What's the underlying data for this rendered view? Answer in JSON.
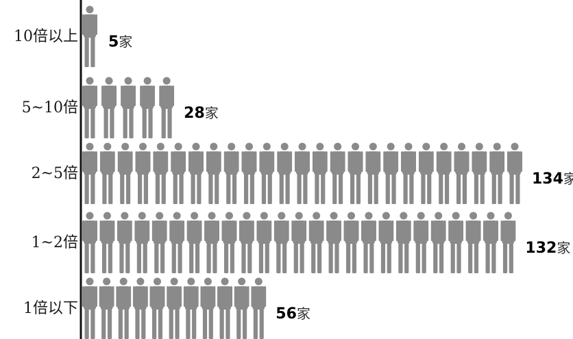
{
  "chart_data": {
    "type": "bar",
    "categories": [
      "10倍以上",
      "5~10倍",
      "2~5倍",
      "1~2倍",
      "1倍以下"
    ],
    "values": [
      5,
      28,
      134,
      132,
      56
    ],
    "value_labels": [
      {
        "number": "5",
        "unit": "家"
      },
      {
        "number": "28",
        "unit": "家"
      },
      {
        "number": "134",
        "unit": "家"
      },
      {
        "number": "132",
        "unit": "家"
      },
      {
        "number": "56",
        "unit": "家"
      }
    ],
    "orientation": "horizontal",
    "xlim": [
      0,
      134
    ],
    "title": "",
    "xlabel": "",
    "ylabel": "",
    "grid": false,
    "legend": "none",
    "mark": "person-pictogram"
  },
  "colors": {
    "figure": "#8a8a8a",
    "axis": "#111111",
    "label": "#1a1a1a",
    "background": "#ffffff"
  }
}
